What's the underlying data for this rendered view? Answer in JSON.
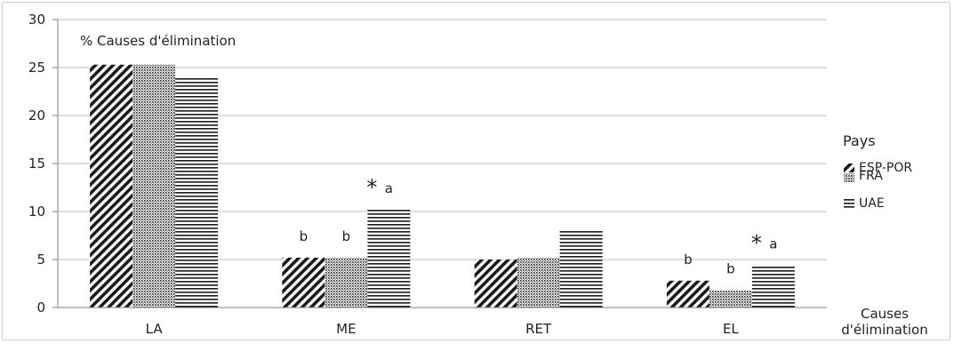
{
  "chart_data": {
    "type": "bar",
    "title": "% Causes d'élimination",
    "xlabel": [
      "Causes",
      "d'élimination"
    ],
    "ylabel": "",
    "ylim": [
      0,
      30
    ],
    "yticks": [
      0,
      5,
      10,
      15,
      20,
      25,
      30
    ],
    "grid": true,
    "categories": [
      "LA",
      "ME",
      "RET",
      "EL"
    ],
    "legend": {
      "title": "Pays",
      "position": "right"
    },
    "series": [
      {
        "name": "ESP-POR",
        "pattern": "diagonal-hatch",
        "values": [
          25.3,
          5.2,
          5.0,
          2.8
        ]
      },
      {
        "name": "FRA",
        "pattern": "dotted",
        "values": [
          25.3,
          5.2,
          5.2,
          1.8
        ]
      },
      {
        "name": "UAE",
        "pattern": "horizontal-lines",
        "values": [
          23.9,
          10.2,
          8.0,
          4.4
        ]
      }
    ],
    "annotations": [
      {
        "category": "ME",
        "series": "ESP-POR",
        "text": "b"
      },
      {
        "category": "ME",
        "series": "FRA",
        "text": "b"
      },
      {
        "category": "ME",
        "series": "UAE",
        "text": "a"
      },
      {
        "category": "ME",
        "text": "*"
      },
      {
        "category": "EL",
        "series": "ESP-POR",
        "text": "b"
      },
      {
        "category": "EL",
        "series": "FRA",
        "text": "b"
      },
      {
        "category": "EL",
        "series": "UAE",
        "text": "a"
      },
      {
        "category": "EL",
        "text": "*"
      }
    ],
    "colors": {
      "bar_fill": "#1a1a1a",
      "grid": "#bfbfbf",
      "axis": "#808080"
    }
  }
}
